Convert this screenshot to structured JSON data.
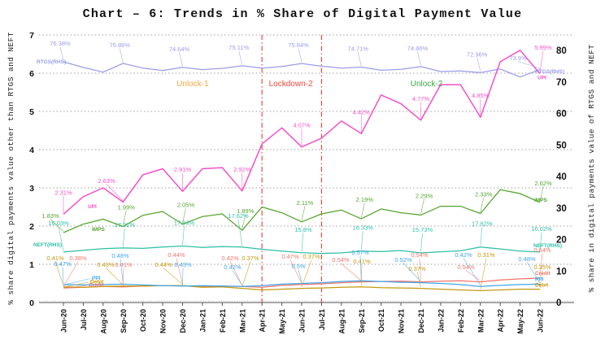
{
  "title": "Chart – 6: Trends in % Share of Digital Payment Value",
  "left_axis": {
    "title": "% share digital payments value other than RTGS and NEFT",
    "min": 0,
    "max": 7,
    "ticks": [
      0,
      1,
      2,
      3,
      4,
      5,
      6,
      7
    ]
  },
  "right_axis": {
    "title": "% share in digital payments value of RTGS and NEFT",
    "min": 0,
    "max": 80,
    "ticks": [
      0,
      10,
      20,
      30,
      40,
      50,
      60,
      70,
      80
    ]
  },
  "annotations": {
    "divider_color": "#e8392e",
    "divider_months": [
      "Apr-21",
      "Jul-21"
    ],
    "phases": [
      {
        "label": "Unlock-1",
        "color": "#f4a63f",
        "month": "Jan-21",
        "dx": -12
      },
      {
        "label": "Lockdown-2",
        "color": "#f4483a",
        "month": "May-21",
        "dx": 11
      },
      {
        "label": "Unlock-2",
        "color": "#3aa746",
        "month": "Dec-21",
        "dx": 7
      }
    ]
  },
  "chart_data": {
    "type": "line",
    "x": [
      "Jun-20",
      "Jul-20",
      "Aug-20",
      "Sep-20",
      "Oct-20",
      "Nov-20",
      "Dec-20",
      "Jan-21",
      "Feb-21",
      "Mar-21",
      "Apr-21",
      "May-21",
      "Jun-21",
      "Jul-21",
      "Aug-21",
      "Sep-21",
      "Oct-21",
      "Nov-21",
      "Dec-21",
      "Jan-22",
      "Feb-22",
      "Mar-22",
      "Apr-22",
      "May-22",
      "Jun-22"
    ],
    "series": [
      {
        "id": "rtgs",
        "name": "RTGS",
        "axis": "right",
        "color": "#9b9ce9",
        "values": [
          76.38,
          74.6,
          73.1,
          75.86,
          74.4,
          73.6,
          74.64,
          73.9,
          74.3,
          75.11,
          74.4,
          74.9,
          75.84,
          75.0,
          74.4,
          74.71,
          73.7,
          74.0,
          74.86,
          73.3,
          73.5,
          72.96,
          74.1,
          71.6,
          73.9
        ],
        "point_labels": [
          [
            0,
            "76.38%"
          ],
          [
            3,
            "75.86%"
          ],
          [
            6,
            "74.64%"
          ],
          [
            9,
            "75.11%"
          ],
          [
            12,
            "75.84%"
          ],
          [
            15,
            "74.71%"
          ],
          [
            18,
            "74.86%"
          ],
          [
            21,
            "72.96%"
          ],
          [
            24,
            "73.9%"
          ]
        ],
        "start_label": "RTGS(RHS)",
        "end_label": "RTGS(RHS)"
      },
      {
        "id": "neft",
        "name": "NEFT",
        "axis": "right",
        "color": "#2ebfa5",
        "values": [
          16.03,
          16.6,
          17.1,
          17.31,
          17.2,
          17.6,
          17.94,
          17.5,
          17.75,
          17.62,
          16.9,
          16.3,
          15.8,
          15.6,
          15.75,
          16.33,
          16.15,
          16.5,
          15.73,
          16.1,
          16.4,
          17.62,
          17.0,
          16.3,
          16.02
        ],
        "point_labels": [
          [
            0,
            "16.03%"
          ],
          [
            3,
            "17.31%"
          ],
          [
            6,
            "17.94%"
          ],
          [
            9,
            "17.62%"
          ],
          [
            12,
            "15.8%"
          ],
          [
            15,
            "16.33%"
          ],
          [
            18,
            "15.73%"
          ],
          [
            21,
            "17.62%"
          ],
          [
            24,
            "16.02%"
          ]
        ],
        "start_label": "NEFT(RHS)",
        "end_label": "NEFT(RHS)"
      },
      {
        "id": "imps",
        "name": "IMPS",
        "axis": "left",
        "color": "#55a52f",
        "values": [
          1.83,
          2.05,
          2.18,
          1.99,
          2.28,
          2.38,
          2.05,
          2.25,
          2.32,
          1.89,
          2.5,
          2.35,
          2.11,
          2.32,
          2.42,
          2.19,
          2.45,
          2.35,
          2.29,
          2.52,
          2.52,
          2.33,
          2.95,
          2.85,
          2.62
        ],
        "point_labels": [
          [
            0,
            "1.83%"
          ],
          [
            3,
            "1.99%"
          ],
          [
            6,
            "2.05%"
          ],
          [
            9,
            "1.89%"
          ],
          [
            12,
            "2.11%"
          ],
          [
            15,
            "2.19%"
          ],
          [
            18,
            "2.29%"
          ],
          [
            21,
            "2.33%"
          ],
          [
            24,
            "2.62%"
          ]
        ],
        "start_label": "IMPS",
        "end_label": "IMPS"
      },
      {
        "id": "credit",
        "name": "Credit",
        "axis": "left",
        "color": "#f2756d",
        "values": [
          0.38,
          0.4,
          0.42,
          0.41,
          0.43,
          0.44,
          0.44,
          0.42,
          0.43,
          0.42,
          0.4,
          0.45,
          0.47,
          0.49,
          0.52,
          0.54,
          0.55,
          0.56,
          0.54,
          0.56,
          0.57,
          0.54,
          0.59,
          0.62,
          0.64
        ],
        "point_labels": [
          [
            0,
            "0.38%"
          ],
          [
            3,
            "0.41%"
          ],
          [
            6,
            "0.44%"
          ],
          [
            9,
            "0.42%"
          ],
          [
            12,
            "0.47%"
          ],
          [
            15,
            "0.54%"
          ],
          [
            18,
            "0.54%"
          ],
          [
            21,
            "0.54%"
          ],
          [
            24,
            "0.64%"
          ]
        ],
        "start_label": "Credit",
        "end_label": "Credit"
      },
      {
        "id": "debit",
        "name": "Debit",
        "axis": "left",
        "color": "#c39a10",
        "values": [
          0.41,
          0.4,
          0.42,
          0.43,
          0.43,
          0.44,
          0.44,
          0.4,
          0.41,
          0.37,
          0.33,
          0.35,
          0.37,
          0.38,
          0.4,
          0.41,
          0.39,
          0.38,
          0.37,
          0.35,
          0.33,
          0.31,
          0.33,
          0.35,
          0.35
        ],
        "point_labels": [
          [
            0,
            "0.41%"
          ],
          [
            3,
            "0.43%"
          ],
          [
            6,
            "0.44%"
          ],
          [
            9,
            "0.37%"
          ],
          [
            12,
            "0.37%"
          ],
          [
            15,
            "0.41%"
          ],
          [
            18,
            "0.37%"
          ],
          [
            21,
            "0.31%"
          ],
          [
            24,
            "0.35%"
          ]
        ],
        "start_label": "Debit",
        "end_label": "Debit"
      },
      {
        "id": "ppi",
        "name": "PPI",
        "axis": "left",
        "color": "#3fa7ee",
        "values": [
          0.47,
          0.46,
          0.47,
          0.48,
          0.46,
          0.44,
          0.43,
          0.44,
          0.43,
          0.42,
          0.44,
          0.48,
          0.5,
          0.52,
          0.55,
          0.57,
          0.55,
          0.53,
          0.52,
          0.5,
          0.47,
          0.42,
          0.45,
          0.47,
          0.48
        ],
        "point_labels": [
          [
            0,
            "0.47%"
          ],
          [
            3,
            "0.48%"
          ],
          [
            6,
            "0.43%"
          ],
          [
            9,
            "0.42%"
          ],
          [
            12,
            "0.5%"
          ],
          [
            15,
            "0.57%"
          ],
          [
            18,
            "0.52%"
          ],
          [
            21,
            "0.42%"
          ],
          [
            24,
            "0.48%"
          ]
        ],
        "start_label": "PPI",
        "end_label": "PPI"
      },
      {
        "id": "upi",
        "name": "UPI",
        "axis": "left",
        "color": "#f750c7",
        "values": [
          2.31,
          2.77,
          3.0,
          2.63,
          3.34,
          3.5,
          2.91,
          3.5,
          3.53,
          2.92,
          4.15,
          4.57,
          4.07,
          4.3,
          4.75,
          4.42,
          5.43,
          5.2,
          4.77,
          5.7,
          5.7,
          4.85,
          6.3,
          6.6,
          5.99
        ],
        "point_labels": [
          [
            0,
            "2.31%"
          ],
          [
            3,
            "2.63%"
          ],
          [
            6,
            "2.91%"
          ],
          [
            9,
            "2.92%"
          ],
          [
            12,
            "4.07%"
          ],
          [
            15,
            "4.42%"
          ],
          [
            18,
            "4.77%"
          ],
          [
            21,
            "4.85%"
          ],
          [
            24,
            "5.99%"
          ]
        ],
        "start_label": "UPI",
        "end_label": "UPI"
      }
    ]
  }
}
